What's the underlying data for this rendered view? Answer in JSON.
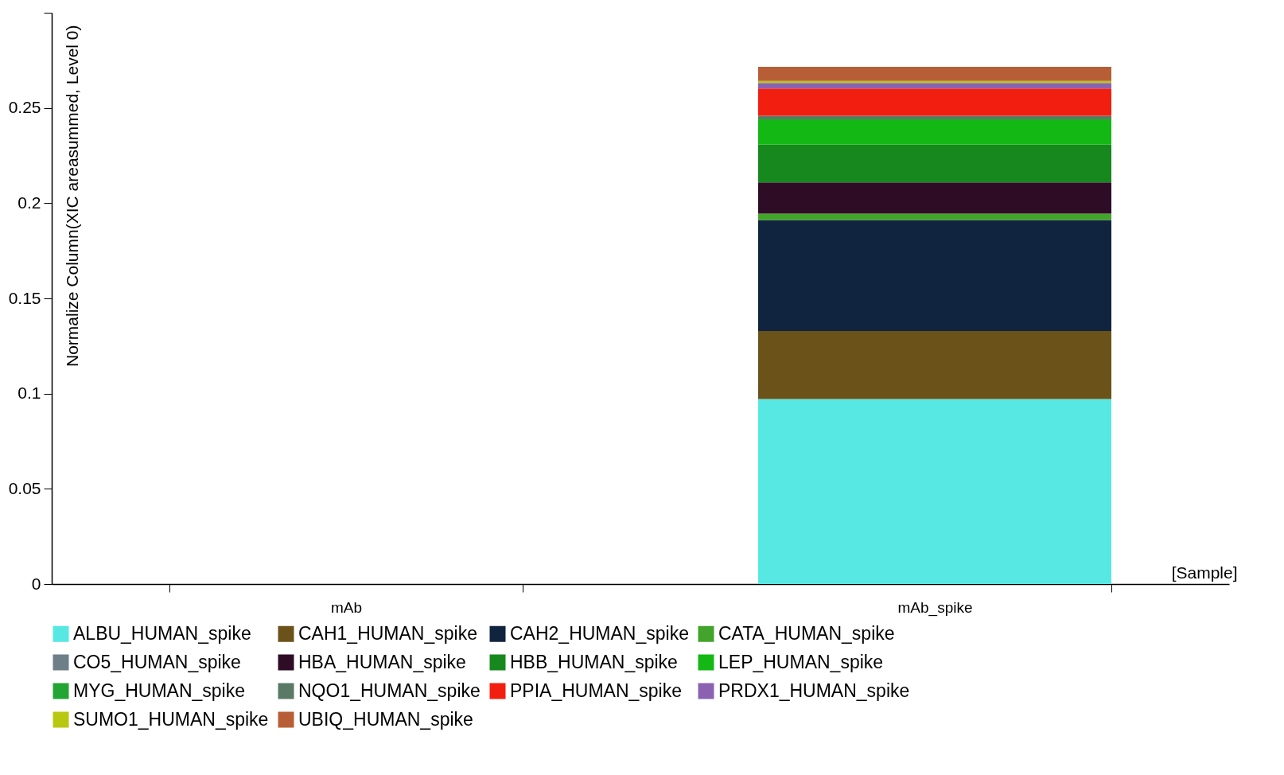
{
  "chart_data": {
    "type": "bar",
    "stacked": true,
    "ylabel": "Normalize Column(XIC areasummed, Level 0)",
    "xlabel": "[Sample]",
    "categories": [
      "mAb",
      "mAb_spike"
    ],
    "ylim": [
      0,
      0.3
    ],
    "yticks": [
      0,
      0.05,
      0.1,
      0.15,
      0.2,
      0.25,
      {
        "value": 0.3,
        "label": null
      }
    ],
    "grid": false,
    "legend": "bottom",
    "series": [
      {
        "name": "ALBU_HUMAN_spike",
        "color": "#57e8e3",
        "values": [
          0,
          0.0971
        ]
      },
      {
        "name": "CAH1_HUMAN_spike",
        "color": "#6b5219",
        "values": [
          0,
          0.0358
        ]
      },
      {
        "name": "CAH2_HUMAN_spike",
        "color": "#10233f",
        "values": [
          0,
          0.0583
        ]
      },
      {
        "name": "CATA_HUMAN_spike",
        "color": "#42a42a",
        "values": [
          0,
          0.0033
        ]
      },
      {
        "name": "CO5_HUMAN_spike",
        "color": "#6f7f88",
        "values": [
          0,
          0
        ]
      },
      {
        "name": "HBA_HUMAN_spike",
        "color": "#2f0c25",
        "values": [
          0,
          0.0164
        ]
      },
      {
        "name": "HBB_HUMAN_spike",
        "color": "#16881e",
        "values": [
          0,
          0.0198
        ]
      },
      {
        "name": "LEP_HUMAN_spike",
        "color": "#14b814",
        "values": [
          0,
          0.0133
        ]
      },
      {
        "name": "MYG_HUMAN_spike",
        "color": "#22a533",
        "values": [
          0,
          0
        ]
      },
      {
        "name": "NQO1_HUMAN_spike",
        "color": "#5a7a66",
        "values": [
          0,
          0.0019
        ]
      },
      {
        "name": "PPIA_HUMAN_spike",
        "color": "#f21f11",
        "values": [
          0,
          0.0143
        ]
      },
      {
        "name": "PRDX1_HUMAN_spike",
        "color": "#8b62b2",
        "values": [
          0,
          0.0029
        ]
      },
      {
        "name": "SUMO1_HUMAN_spike",
        "color": "#b8c811",
        "values": [
          0,
          0.0011
        ]
      },
      {
        "name": "UBIQ_HUMAN_spike",
        "color": "#b85e36",
        "values": [
          0,
          0.0074
        ]
      }
    ]
  }
}
